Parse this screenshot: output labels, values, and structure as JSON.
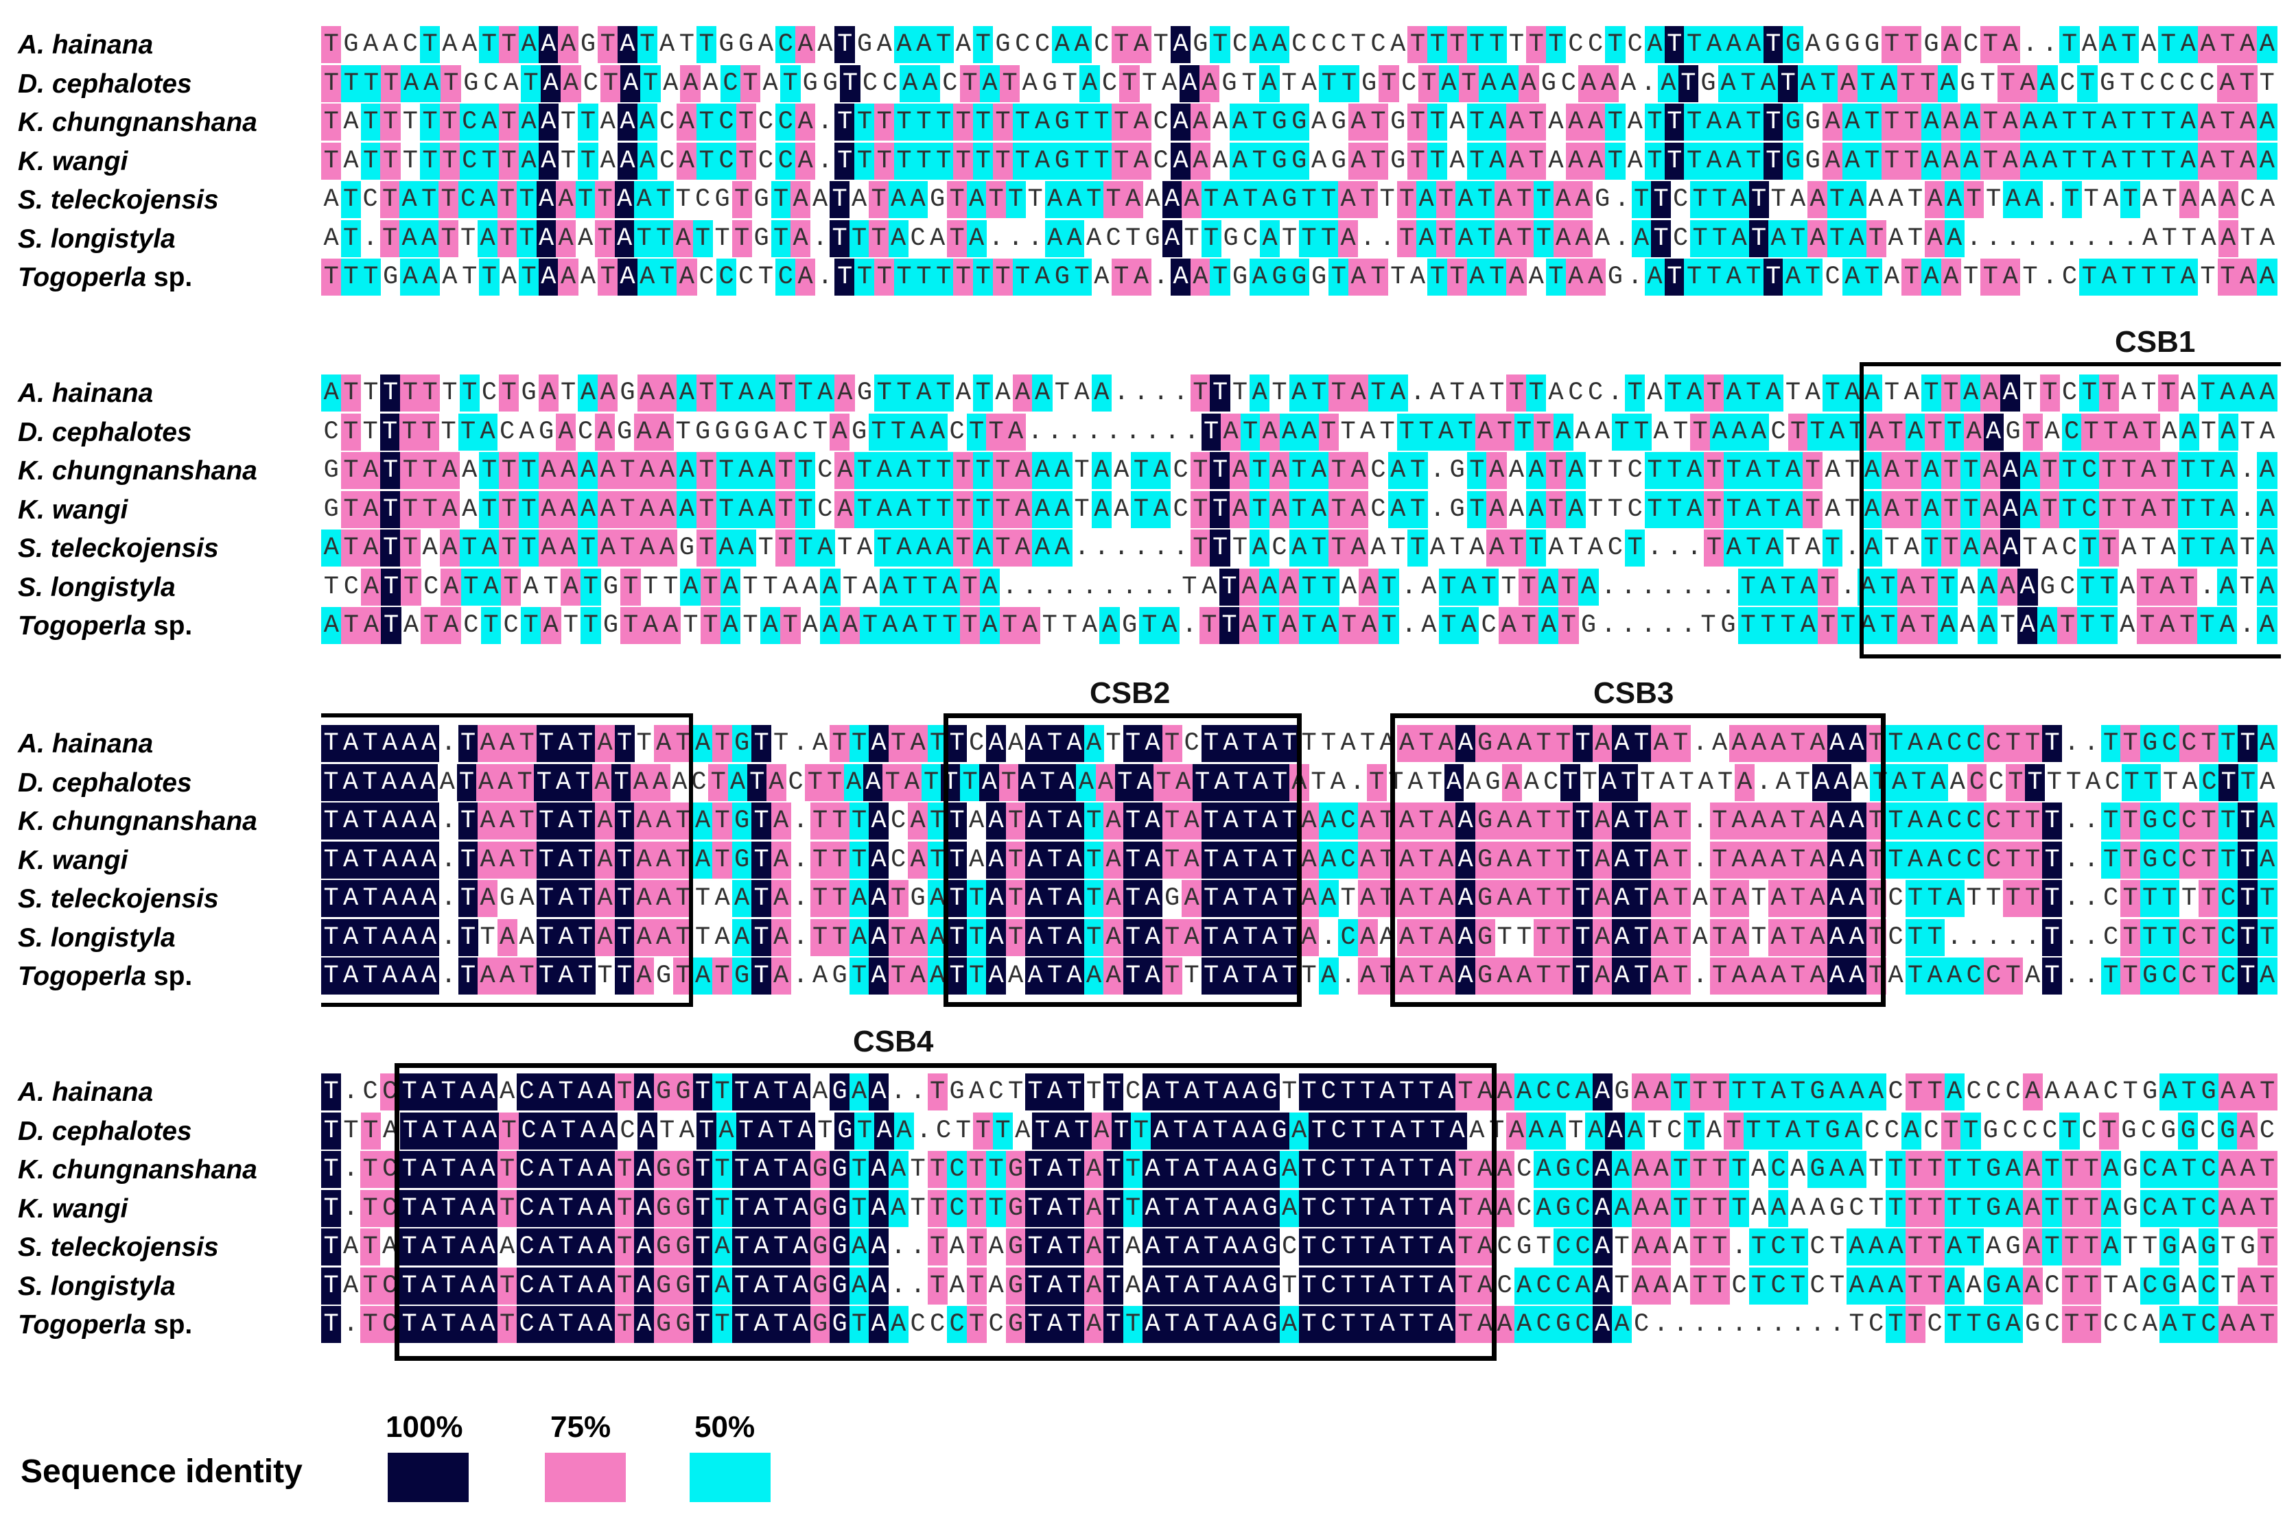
{
  "blocks": [
    {
      "rows": [
        {
          "species": "A. hainana",
          "genus": "A.",
          "epithet": "hainana",
          "seq": "TGAACTAATTAAAGTATATTGGACAATGAAATATGCCAACTATAGTCAACCCTCATTTTTTTTCCTCATTAAATGAGGGTTGACTA..TAATATAATAA"
        },
        {
          "species": "D. cephalotes",
          "genus": "D.",
          "epithet": "cephalotes",
          "seq": "TTTTAATGCATAACTATAAACTATGGTCCAACTATAGTACTTAAAGTATATTGTCTATAAAGCAAA.ATGATATATATATTAGTTAACTGTCCCCATT"
        },
        {
          "species": "K. chungnanshana",
          "genus": "K.",
          "epithet": "chungnanshana",
          "seq": "TATTTTTCATAATTAAACATCTCCA.TTTTTTTTTTAGTTTACAAAATGGAGATGTTATAATAAATATTTAATTGGAATTTAAATAAATTATTTAATAA"
        },
        {
          "species": "K. wangi",
          "genus": "K.",
          "epithet": "wangi",
          "seq": "TATTTTTCTTAATTAAACATCTCCA.TTTTTTTTTTAGTTTACAAAATGGAGATGTTATAATAAATATTTAATTGGAATTTAAATAAATTATTTAATAA"
        },
        {
          "species": "S. teleckojensis",
          "genus": "S.",
          "epithet": "teleckojensis",
          "seq": "ATCTATTCATTAATTAATTCGTGTAATATAAGTATTTAATTAAAATATAGTTATTTATATATTAAG.TTCTTATTAATAAATAATTAA.TTATATAAACA"
        },
        {
          "species": "S. longistyla",
          "genus": "S.",
          "epithet": "longistyla",
          "seq": "AT.TAATTATTAAATATTATTTGTA.TTTACATA...AAACTGATTGCATTTA..TATATATTAAA.ATCTTATATATATATAA.........ATTAATA"
        },
        {
          "species": "Togoperla sp.",
          "genus": "Togoperla",
          "epithet": "sp.",
          "seq": "TTTGAAATTATAAATAATACCCTCA.TTTTTTTTTTAGTATA.AATGAGGGTATTATTATAATAAG.ATTTATTATCATATAATTAT.CTATTTATTAA"
        }
      ]
    },
    {
      "rows": [
        {
          "species": "A. hainana",
          "genus": "A.",
          "epithet": "hainana",
          "seq": "ATTTTTTTCTGATAAGAAATTAATTAAGTTATATAAATAA....TTTATATTATA.ATATTTACC.TATATATATATAATATTAAATTCTTATTATAAA"
        },
        {
          "species": "D. cephalotes",
          "genus": "D.",
          "epithet": "cephalotes",
          "seq": "CTTTTTTTACAGACAGAATGGGGACTAGTTAACTTA.........TATAAATTATTTATATTTAAATTATTAAACTTATATATTAAGTACTTATAATATA"
        },
        {
          "species": "K. chungnanshana",
          "genus": "K.",
          "epithet": "chungnanshana",
          "seq": "GTATTTAATTTAAAATAAATTAATTCATAATTTTTAAATAATACTTATATATACAT.GTAAATATTCTTATTATATATAATATTAAATTCTTATTTA.A"
        },
        {
          "species": "K. wangi",
          "genus": "K.",
          "epithet": "wangi",
          "seq": "GTATTTAATTTAAAATAAATTAATTCATAATTTTTAAATAATACTTATATATACAT.GTAAATATTCTTATTATATATAATATTAAATTCTTATTTA.A"
        },
        {
          "species": "S. teleckojensis",
          "genus": "S.",
          "epithet": "teleckojensis",
          "seq": "ATATTAATATTAATATAAGTAATTTATATAAATATAAA......TTTACATTAATTATAATTATACT...TATATAT.ATATTAAATACTTATATTATA"
        },
        {
          "species": "S. longistyla",
          "genus": "S.",
          "epithet": "longistyla",
          "seq": "TCATTCATATATATGTTTATATTAAATAATTATA.........TATAAATTAAT.ATATTTATA.......TATAT.ATATTAAAAGCTTATAT.ATA"
        },
        {
          "species": "Togoperla sp.",
          "genus": "Togoperla",
          "epithet": "sp.",
          "seq": "ATATATACTCTATTGTAATTATATAAATAATTTATATTAAGTA.TTATATATAT.ATACATATG.....TGTTTATTATATAAATAATTTATATTA.A"
        }
      ]
    },
    {
      "rows": [
        {
          "species": "A. hainana",
          "genus": "A.",
          "epithet": "hainana",
          "seq": "TATAAA.TAATTATATTATATGTT.ATTATATTCAAATAATTATCTATATTTATAATAAGAATTTAATAT.AAAATAAATTAACCCTTT..TTGCCTTTA"
        },
        {
          "species": "D. cephalotes",
          "genus": "D.",
          "epithet": "cephalotes",
          "seq": "TATAAAATAATTATATAAACTATACTTAATATTTATATAAATATATATATATA.TTATAAGAACTTATTATATA.ATAAATATAACCTTTTACTTTACTTA"
        },
        {
          "species": "K. chungnanshana",
          "genus": "K.",
          "epithet": "chungnanshana",
          "seq": "TATAAA.TAATTATATAATATGTA.TTTACATTAATATATATATATATATAACATATAAGAATTTAATAT.TAAATAAATTAACCCTTT..TTGCCTTTA"
        },
        {
          "species": "K. wangi",
          "genus": "K.",
          "epithet": "wangi",
          "seq": "TATAAA.TAATTATATAATATGTA.TTTACATTAATATATATATATATATAACATATAAGAATTTAATAT.TAAATAAATTAACCCTTT..TTGCCTTTA"
        },
        {
          "species": "S. teleckojensis",
          "genus": "S.",
          "epithet": "teleckojensis",
          "seq": "TATAAA.TAGATATATAATTAATA.TTAATGATTATATATATAGATATATAATATATAAGAATTTAATATATATATAAATCTTATTTTT..CTTTTTCTT"
        },
        {
          "species": "S. longistyla",
          "genus": "S.",
          "epithet": "longistyla",
          "seq": "TATAAA.TTAATATATAATTAATA.TTAATAATTATATATATATATATATA.CAAATAAGTTTTTAATATATATATAAATCTT.....T..CTTTCTCTT"
        },
        {
          "species": "Togoperla sp.",
          "genus": "Togoperla",
          "epithet": "sp.",
          "seq": "TATAAA.TAATTATTTAGTATGTA.AGTATAATTAAATAAATATTTATATTA.ATATAAGAATTTAATAT.TAAATAAATATAACCTAT..TTGCCTCTA"
        }
      ]
    },
    {
      "rows": [
        {
          "species": "A. hainana",
          "genus": "A.",
          "epithet": "hainana",
          "seq": "T.CCTATAAACATAATAGGTTTATAAGAA..TGACTTATTTCATATAAGTTCTTATTATAAACCAAGAATTTTTATGAAACTTACCCAAAACTGATGAAT"
        },
        {
          "species": "D. cephalotes",
          "genus": "D.",
          "epithet": "cephalotes",
          "seq": "TTTATATAATCATAACATATATATATGTAA.CTTTATATATTATATAAGATCTTATTAATAAATAAATCTATTTATGACCACTTGCCCTCTGCGGCGAC"
        },
        {
          "species": "K. chungnanshana",
          "genus": "K.",
          "epithet": "chungnanshana",
          "seq": "T.TCTATAATCATAATAGGTTTATAGGTAATTCTTGTATATTATATAAGATCTTATTATAACAGCAAAATTTTACAGAATTTTTTGAATTTAGCATCAAT"
        },
        {
          "species": "K. wangi",
          "genus": "K.",
          "epithet": "wangi",
          "seq": "T.TCTATAATCATAATAGGTTTATAGGTAATTCTTGTATATTATATAAGATCTTATTATAACAGCAAAATTTTAAAAGCTTTTTTGAATTTAGCATCAAT"
        },
        {
          "species": "S. teleckojensis",
          "genus": "S.",
          "epithet": "teleckojensis",
          "seq": "TATATATAAACATAATAGGTATATAGGAA..TATAGTATATAATATAAGCTCTTATTATACGTCCATAAATT.TCTCTAAATTATAGATTTATTGAGTGT"
        },
        {
          "species": "S. longistyla",
          "genus": "S.",
          "epithet": "longistyla",
          "seq": "TATCTATAATCATAATAGGTATATAGGAA..TATAGTATATAATATAAGTTCTTATTATACACCAATAAATTCTCTCTAAATTAAGAACTTTACGACTAT"
        },
        {
          "species": "Togoperla sp.",
          "genus": "Togoperla",
          "epithet": "sp.",
          "seq": "T.TCTATAATCATAATAGGTTTATAGGTAACCCTCGTATATTATATAAGATCTTATTATAAACGCAAC..........TCTTCTTGAGCTTCCAATCAAT"
        }
      ]
    }
  ],
  "csb_labels": {
    "csb1": "CSB1",
    "csb2": "CSB2",
    "csb3": "CSB3",
    "csb4": "CSB4"
  },
  "legend": {
    "title": "Sequence identity",
    "items": [
      {
        "label": "100%",
        "color": "#05053c"
      },
      {
        "label": "75%",
        "color": "#f47ec1"
      },
      {
        "label": "50%",
        "color": "#00f2f4"
      }
    ]
  },
  "colors": {
    "identity_100": "#05053c",
    "identity_75": "#f47ec1",
    "identity_50": "#00f2f4"
  }
}
